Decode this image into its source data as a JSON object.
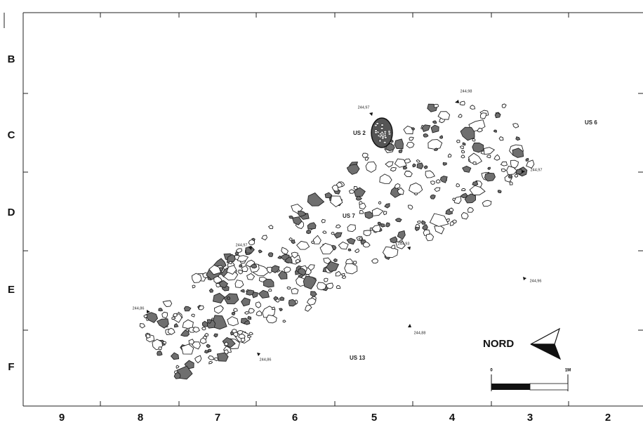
{
  "grid": {
    "rows": [
      "B",
      "C",
      "D",
      "E",
      "F"
    ],
    "columns": [
      "9",
      "8",
      "7",
      "6",
      "5",
      "4",
      "3",
      "2"
    ]
  },
  "zones": [
    "US 6",
    "US 2",
    "US 7",
    "US 13"
  ],
  "elevations": [
    "244,98",
    "244,97",
    "244,97",
    "244,97",
    "244,93",
    "244,96",
    "244,86",
    "244,88",
    "244,86"
  ],
  "north": {
    "label": "NORD"
  },
  "scale": {
    "start": "0",
    "end": "1M"
  }
}
